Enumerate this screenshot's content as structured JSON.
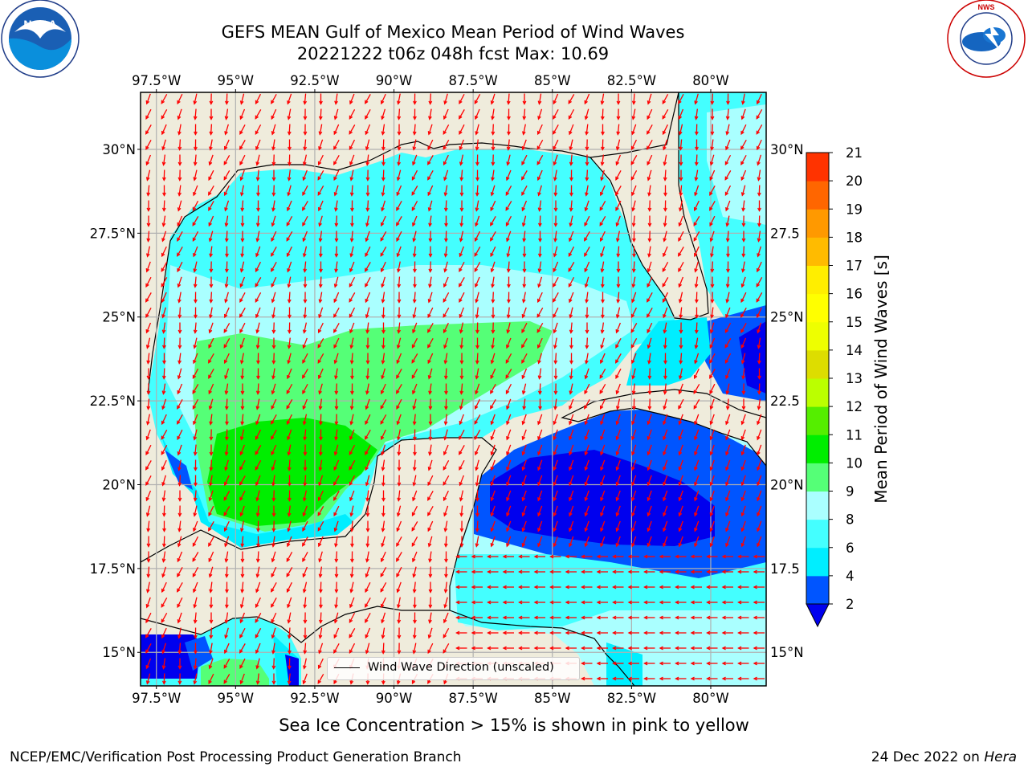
{
  "title": {
    "line1": "GEFS MEAN Gulf of Mexico Mean Period of Wind Waves",
    "line2": "20221222 t06z 048h fcst   Max: 10.69"
  },
  "logos": {
    "left": {
      "icon": "noaa-logo",
      "text": "NOAA",
      "ring_text": "NATIONAL OCEANIC AND ATMOSPHERIC ADMINISTRATION · U.S. DEPARTMENT OF COMMERCE"
    },
    "right": {
      "icon": "nws-logo",
      "ring_text": "NATIONAL WEATHER SERVICE"
    }
  },
  "map": {
    "lon_ticks": [
      "97.5°W",
      "95°W",
      "92.5°W",
      "90°W",
      "87.5°W",
      "85°W",
      "82.5°W",
      "80°W"
    ],
    "lat_ticks_left": [
      "30°N",
      "27.5°N",
      "25°N",
      "22.5°N",
      "20°N",
      "17.5°N",
      "15°N"
    ],
    "lat_ticks_right": [
      "30°N",
      "27.5",
      "25°N",
      "22.5",
      "20°N",
      "17.5",
      "15°N"
    ],
    "lon_range": [
      -98,
      -78.25
    ],
    "lat_range": [
      14,
      31.7
    ],
    "gridlines": true,
    "land_color": "#efecdc",
    "legend": {
      "label": "Wind Wave Direction (unscaled)",
      "arrow_color": "#ff0000"
    }
  },
  "colorbar": {
    "label": "Mean Period of Wind Waves [s]",
    "ticks": [
      "2",
      "4",
      "6",
      "8",
      "9",
      "10",
      "11",
      "12",
      "13",
      "14",
      "15",
      "16",
      "17",
      "18",
      "19",
      "20",
      "21"
    ],
    "colors": [
      "#0055ff",
      "#00eeff",
      "#44ffff",
      "#aaffff",
      "#55ff77",
      "#00ee00",
      "#55ee00",
      "#bbff00",
      "#dddd00",
      "#eeff00",
      "#ffff00",
      "#ffee00",
      "#ffbb00",
      "#ff9900",
      "#ff6600",
      "#ff3300"
    ],
    "underflow_color": "#0000ee"
  },
  "footer": {
    "note": "Sea Ice Concentration > 15% is shown in pink to yellow",
    "credit": "NCEP/EMC/Verification Post Processing Product Generation Branch",
    "date": "24 Dec 2022 on",
    "host": "Hera"
  }
}
